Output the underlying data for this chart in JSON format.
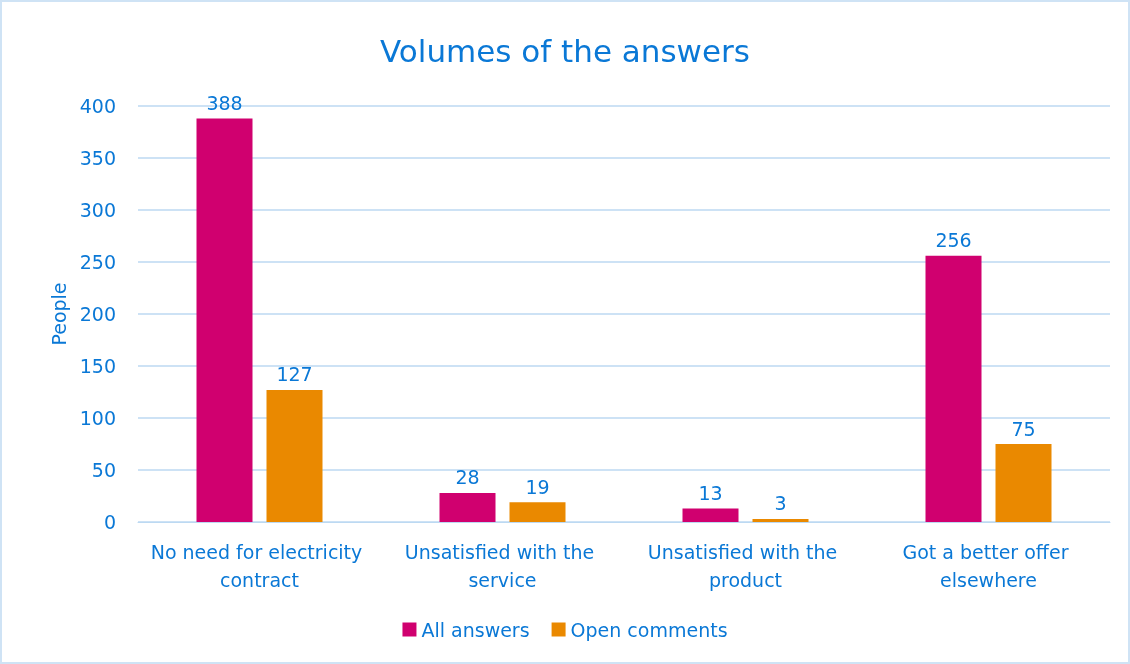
{
  "chart_data": {
    "type": "bar",
    "title": "Volumes of the answers",
    "ylabel": "People",
    "categories": [
      "No need for electricity contract",
      "Unsatisfied with the service",
      "Unsatisfied with the product",
      "Got a better offer elsewhere"
    ],
    "series": [
      {
        "name": "All answers",
        "color": "#d0006f",
        "values": [
          388,
          28,
          13,
          256
        ]
      },
      {
        "name": "Open comments",
        "color": "#ea8900",
        "values": [
          127,
          19,
          3,
          75
        ]
      }
    ],
    "ylim": [
      0,
      400
    ],
    "yticks": [
      0,
      50,
      100,
      150,
      200,
      250,
      300,
      350,
      400
    ],
    "grid": "y",
    "legend": "bottom",
    "data_labels": true
  }
}
